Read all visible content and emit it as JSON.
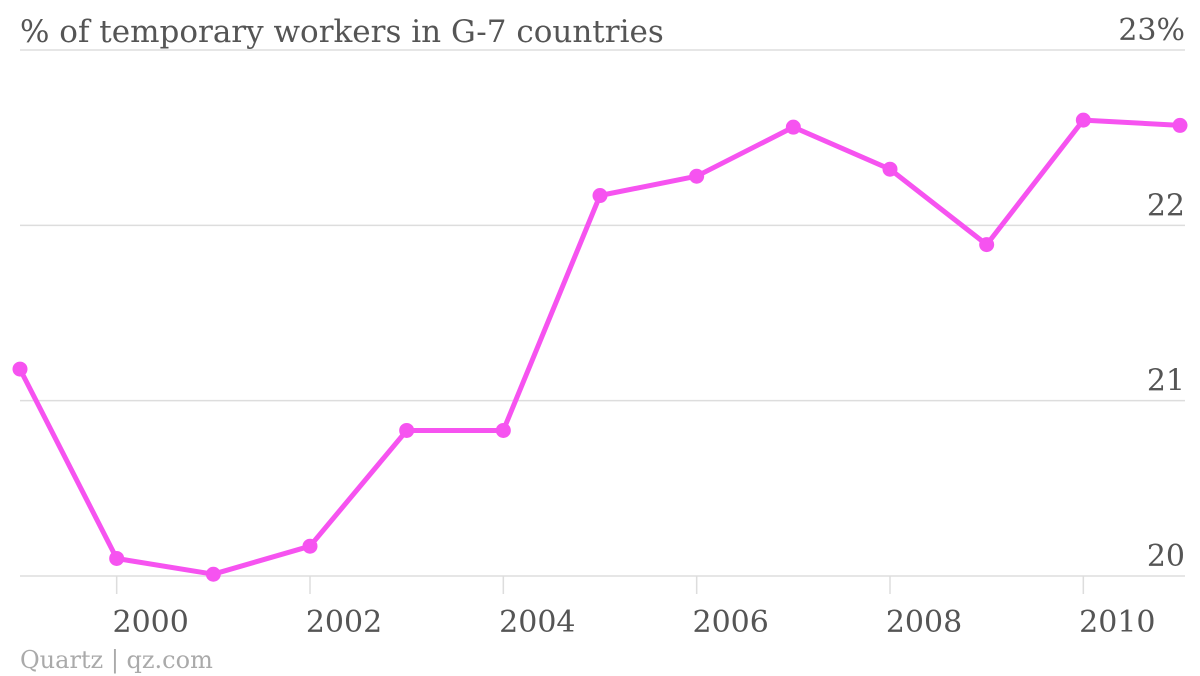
{
  "chart_data": {
    "type": "line",
    "title": "% of temporary workers in G-7 countries",
    "x": [
      1999,
      2000,
      2001,
      2002,
      2003,
      2004,
      2005,
      2006,
      2007,
      2008,
      2009,
      2010,
      2011
    ],
    "series": [
      {
        "values": [
          21.18,
          20.1,
          20.01,
          20.17,
          20.83,
          20.83,
          22.17,
          22.28,
          22.56,
          22.32,
          21.89,
          22.6,
          22.57
        ],
        "color": "#f653f0"
      }
    ],
    "y_ticks": [
      20,
      21,
      22,
      23
    ],
    "y_tick_labels": [
      "20",
      "21",
      "22",
      "23%"
    ],
    "x_ticks": [
      2000,
      2002,
      2004,
      2006,
      2008,
      2010
    ],
    "x_tick_labels": [
      "2000",
      "2002",
      "2004",
      "2006",
      "2008",
      "2010"
    ],
    "ylim": [
      20,
      23
    ],
    "xlim": [
      1999,
      2011
    ],
    "grid": true,
    "markers": true
  },
  "source": "Quartz | qz.com"
}
